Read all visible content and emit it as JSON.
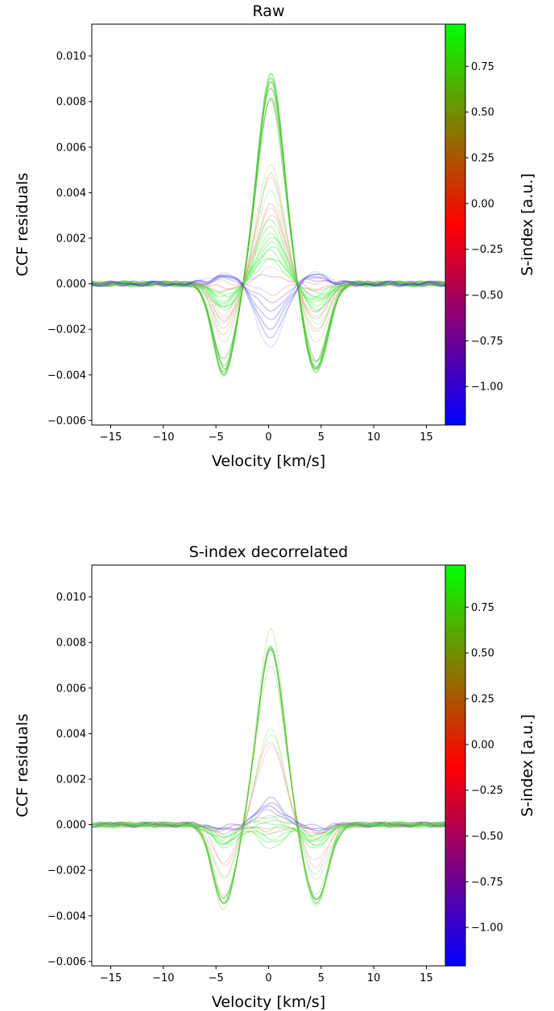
{
  "chart_data": [
    {
      "type": "line",
      "title": "Raw",
      "xlabel": "Velocity [km/s]",
      "ylabel": "CCF residuals",
      "xlim": [
        -16.8,
        16.8
      ],
      "ylim": [
        -0.0062,
        0.0114
      ],
      "xticks": [
        -15,
        -10,
        -5,
        0,
        5,
        10,
        15
      ],
      "xtick_labels": [
        "−15",
        "−10",
        "−5",
        "0",
        "5",
        "10",
        "15"
      ],
      "yticks": [
        -0.006,
        -0.004,
        -0.002,
        0.0,
        0.002,
        0.004,
        0.006,
        0.008,
        0.01
      ],
      "ytick_labels": [
        "−0.006",
        "−0.004",
        "−0.002",
        "0.000",
        "0.002",
        "0.004",
        "0.006",
        "0.008",
        "0.010"
      ],
      "colorbar": {
        "label": "S-index [a.u.]",
        "range": [
          -1.21,
          0.98
        ],
        "ticks": [
          -1.0,
          -0.75,
          -0.5,
          -0.25,
          0.0,
          0.25,
          0.5,
          0.75
        ],
        "tick_labels": [
          "−1.00",
          "−0.75",
          "−0.50",
          "−0.25",
          "0.00",
          "0.25",
          "0.50",
          "0.75"
        ],
        "colors": [
          "#0000ff",
          "#ff0000",
          "#00ff00"
        ]
      },
      "series": [
        {
          "s_index": 0.95,
          "color": "#3fcc2f",
          "peak": 0.0092,
          "dip": -0.004,
          "opacity": 0.55
        },
        {
          "s_index": 0.9,
          "color": "#3fcc2f",
          "peak": 0.009,
          "dip": -0.0039,
          "opacity": 0.6
        },
        {
          "s_index": 0.88,
          "color": "#45c52c",
          "peak": 0.0088,
          "dip": -0.0038,
          "opacity": 0.6
        },
        {
          "s_index": 0.86,
          "color": "#45c52c",
          "peak": 0.0087,
          "dip": -0.0037,
          "opacity": 0.6
        },
        {
          "s_index": 0.85,
          "color": "#4bbf2a",
          "peak": 0.0082,
          "dip": -0.0035,
          "opacity": 0.5
        },
        {
          "s_index": 0.8,
          "color": "#4bbf2a",
          "peak": 0.008,
          "dip": -0.0034,
          "opacity": 0.45
        },
        {
          "s_index": 0.7,
          "color": "#9acd60",
          "peak": 0.0052,
          "dip": -0.0026,
          "opacity": 0.3
        },
        {
          "s_index": 0.6,
          "color": "#aa9a50",
          "peak": 0.0048,
          "dip": -0.0022,
          "opacity": 0.3
        },
        {
          "s_index": 0.4,
          "color": "#d59a6a",
          "peak": 0.0046,
          "dip": -0.002,
          "opacity": 0.3
        },
        {
          "s_index": 0.3,
          "color": "#6fe86a",
          "peak": 0.004,
          "dip": -0.0018,
          "opacity": 0.3
        },
        {
          "s_index": 0.2,
          "color": "#c28a60",
          "peak": 0.0035,
          "dip": -0.0016,
          "opacity": 0.3
        },
        {
          "s_index": 0.1,
          "color": "#ee9090",
          "peak": 0.0033,
          "dip": -0.0015,
          "opacity": 0.3
        },
        {
          "s_index": 0.05,
          "color": "#ee8a8a",
          "peak": 0.003,
          "dip": -0.0013,
          "opacity": 0.3
        },
        {
          "s_index": 0.3,
          "color": "#33ee33",
          "peak": 0.0028,
          "dip": -0.0012,
          "opacity": 0.35
        },
        {
          "s_index": 0.35,
          "color": "#33ee33",
          "peak": 0.0025,
          "dip": -0.0011,
          "opacity": 0.35
        },
        {
          "s_index": 0.4,
          "color": "#33ee33",
          "peak": 0.0022,
          "dip": -0.001,
          "opacity": 0.35
        },
        {
          "s_index": 0.45,
          "color": "#33ee33",
          "peak": 0.002,
          "dip": -0.0009,
          "opacity": 0.35
        },
        {
          "s_index": 0.5,
          "color": "#33ee33",
          "peak": 0.0018,
          "dip": -0.0008,
          "opacity": 0.35
        },
        {
          "s_index": 0.55,
          "color": "#33ee33",
          "peak": 0.0016,
          "dip": -0.0007,
          "opacity": 0.35
        },
        {
          "s_index": 0.6,
          "color": "#33ee33",
          "peak": 0.0014,
          "dip": -0.0006,
          "opacity": 0.35
        },
        {
          "s_index": 0.65,
          "color": "#33ee33",
          "peak": 0.0012,
          "dip": -0.0005,
          "opacity": 0.35
        },
        {
          "s_index": 0.7,
          "color": "#33ee33",
          "peak": 0.001,
          "dip": -0.0004,
          "opacity": 0.35
        },
        {
          "s_index": 0.2,
          "color": "#e89595",
          "peak": 0.0007,
          "dip": -0.0003,
          "opacity": 0.3
        },
        {
          "s_index": 0.0,
          "color": "#e05050",
          "peak": 0.0004,
          "dip": -0.0002,
          "opacity": 0.3
        },
        {
          "s_index": -0.3,
          "color": "#c060a0",
          "peak": -0.0004,
          "dip": 0.0001,
          "opacity": 0.25
        },
        {
          "s_index": -0.6,
          "color": "#8040c0",
          "peak": -0.0008,
          "dip": 0.0002,
          "opacity": 0.3
        },
        {
          "s_index": -0.8,
          "color": "#5b30d5",
          "peak": -0.0012,
          "dip": 0.0003,
          "opacity": 0.3
        },
        {
          "s_index": -0.9,
          "color": "#4040e0",
          "peak": -0.0016,
          "dip": 0.0003,
          "opacity": 0.3
        },
        {
          "s_index": -1.0,
          "color": "#2020ee",
          "peak": -0.002,
          "dip": 0.0004,
          "opacity": 0.3
        },
        {
          "s_index": -1.05,
          "color": "#2020ee",
          "peak": -0.0024,
          "dip": 0.0004,
          "opacity": 0.25
        },
        {
          "s_index": -1.1,
          "color": "#6060f0",
          "peak": -0.0028,
          "dip": 0.0005,
          "opacity": 0.2
        }
      ]
    },
    {
      "type": "line",
      "title": "S-index decorrelated",
      "xlabel": "Velocity [km/s]",
      "ylabel": "CCF residuals",
      "xlim": [
        -16.8,
        16.8
      ],
      "ylim": [
        -0.0062,
        0.0114
      ],
      "xticks": [
        -15,
        -10,
        -5,
        0,
        5,
        10,
        15
      ],
      "xtick_labels": [
        "−15",
        "−10",
        "−5",
        "0",
        "5",
        "10",
        "15"
      ],
      "yticks": [
        -0.006,
        -0.004,
        -0.002,
        0.0,
        0.002,
        0.004,
        0.006,
        0.008,
        0.01
      ],
      "ytick_labels": [
        "−0.006",
        "−0.004",
        "−0.002",
        "0.000",
        "0.002",
        "0.004",
        "0.006",
        "0.008",
        "0.010"
      ],
      "colorbar": {
        "label": "S-index [a.u.]",
        "range": [
          -1.21,
          0.98
        ],
        "ticks": [
          -1.0,
          -0.75,
          -0.5,
          -0.25,
          0.0,
          0.25,
          0.5,
          0.75
        ],
        "tick_labels": [
          "−1.00",
          "−0.75",
          "−0.50",
          "−0.25",
          "0.00",
          "0.25",
          "0.50",
          "0.75"
        ],
        "colors": [
          "#0000ff",
          "#ff0000",
          "#00ff00"
        ]
      },
      "series": [
        {
          "s_index": 0.95,
          "color": "#9acd70",
          "peak": 0.0085,
          "dip": -0.0037,
          "opacity": 0.35
        },
        {
          "s_index": 0.9,
          "color": "#3fcc2f",
          "peak": 0.0078,
          "dip": -0.0035,
          "opacity": 0.6
        },
        {
          "s_index": 0.88,
          "color": "#45c52c",
          "peak": 0.0077,
          "dip": -0.0034,
          "opacity": 0.6
        },
        {
          "s_index": 0.86,
          "color": "#4bbf2a",
          "peak": 0.0076,
          "dip": -0.0033,
          "opacity": 0.55
        },
        {
          "s_index": 0.8,
          "color": "#9acd60",
          "peak": 0.007,
          "dip": -0.0031,
          "opacity": 0.35
        },
        {
          "s_index": 0.7,
          "color": "#9acd60",
          "peak": 0.0042,
          "dip": -0.0024,
          "opacity": 0.3
        },
        {
          "s_index": 0.6,
          "color": "#6fe86a",
          "peak": 0.004,
          "dip": -0.0022,
          "opacity": 0.3
        },
        {
          "s_index": 0.1,
          "color": "#ee9090",
          "peak": 0.0037,
          "dip": -0.0018,
          "opacity": 0.3
        },
        {
          "s_index": 0.05,
          "color": "#ee8a8a",
          "peak": 0.0035,
          "dip": -0.0016,
          "opacity": 0.3
        },
        {
          "s_index": -0.9,
          "color": "#4040e0",
          "peak": 0.0011,
          "dip": -0.0001,
          "opacity": 0.3
        },
        {
          "s_index": -0.8,
          "color": "#5b30d5",
          "peak": 0.0009,
          "dip": -0.0002,
          "opacity": 0.3
        },
        {
          "s_index": -1.0,
          "color": "#2020ee",
          "peak": 0.0008,
          "dip": -0.0002,
          "opacity": 0.3
        },
        {
          "s_index": -0.6,
          "color": "#8040c0",
          "peak": 0.0006,
          "dip": -0.0003,
          "opacity": 0.3
        },
        {
          "s_index": 0.3,
          "color": "#33ee33",
          "peak": 0.0004,
          "dip": -0.0004,
          "opacity": 0.35
        },
        {
          "s_index": 0.4,
          "color": "#33ee33",
          "peak": 0.0002,
          "dip": -0.0005,
          "opacity": 0.35
        },
        {
          "s_index": 0.5,
          "color": "#33ee33",
          "peak": 0.0,
          "dip": -0.0006,
          "opacity": 0.35
        },
        {
          "s_index": 0.55,
          "color": "#33ee33",
          "peak": -0.0002,
          "dip": -0.0007,
          "opacity": 0.35
        },
        {
          "s_index": 0.6,
          "color": "#33ee33",
          "peak": -0.0004,
          "dip": -0.0008,
          "opacity": 0.35
        },
        {
          "s_index": 0.65,
          "color": "#33ee33",
          "peak": -0.0006,
          "dip": -0.0008,
          "opacity": 0.35
        },
        {
          "s_index": 0.7,
          "color": "#33ee33",
          "peak": -0.0008,
          "dip": -0.0009,
          "opacity": 0.35
        },
        {
          "s_index": 0.75,
          "color": "#33ee33",
          "peak": -0.001,
          "dip": -0.001,
          "opacity": 0.35
        },
        {
          "s_index": 0.2,
          "color": "#e89595",
          "peak": -0.0003,
          "dip": -0.0006,
          "opacity": 0.25
        },
        {
          "s_index": 0.0,
          "color": "#e05050",
          "peak": -0.0002,
          "dip": -0.0004,
          "opacity": 0.25
        },
        {
          "s_index": -0.3,
          "color": "#c060a0",
          "peak": 0.0003,
          "dip": -0.0003,
          "opacity": 0.25
        }
      ]
    }
  ]
}
